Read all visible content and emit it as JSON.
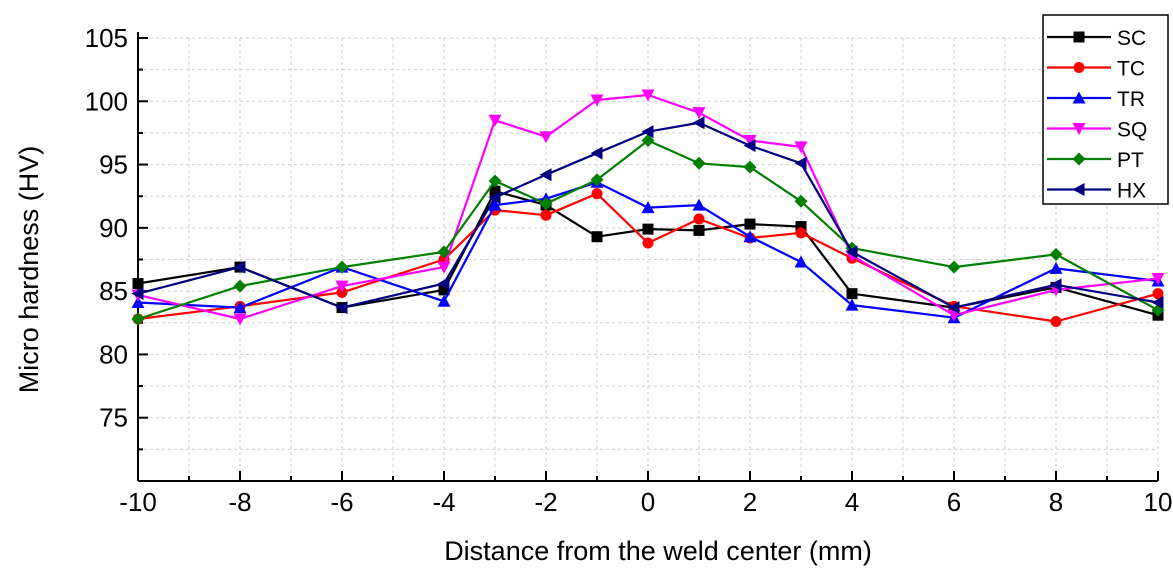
{
  "chart_data": {
    "type": "line",
    "xlabel": "Distance from the weld center (mm)",
    "ylabel": "Micro hardness (HV)",
    "xlim": [
      -10,
      10
    ],
    "ylim": [
      70,
      105
    ],
    "xticks": [
      "-10",
      "-8",
      "-6",
      "-4",
      "-2",
      "0",
      "2",
      "4",
      "6",
      "8",
      "10"
    ],
    "yticks": [
      "75",
      "80",
      "85",
      "90",
      "95",
      "100",
      "105"
    ],
    "grid": true,
    "legend_position": "top-right",
    "series": [
      {
        "name": "SC",
        "color": "#000000",
        "marker": "square",
        "x": [
          -10,
          -8,
          -6,
          -4,
          -3,
          -2,
          -1,
          0,
          1,
          2,
          3,
          4,
          6,
          8,
          10
        ],
        "y": [
          85.6,
          86.9,
          83.7,
          85.1,
          92.9,
          91.8,
          89.3,
          89.9,
          89.8,
          90.3,
          90.1,
          84.8,
          83.7,
          85.3,
          83.1
        ]
      },
      {
        "name": "TC",
        "color": "#ff0000",
        "marker": "circle",
        "x": [
          -10,
          -8,
          -6,
          -4,
          -3,
          -2,
          -1,
          0,
          1,
          2,
          3,
          4,
          6,
          8,
          10
        ],
        "y": [
          82.8,
          83.8,
          84.9,
          87.5,
          91.4,
          91.0,
          92.7,
          88.8,
          90.7,
          89.2,
          89.6,
          87.6,
          83.8,
          82.6,
          84.8
        ]
      },
      {
        "name": "TR",
        "color": "#0000ff",
        "marker": "triangle-up",
        "x": [
          -10,
          -8,
          -6,
          -4,
          -3,
          -2,
          -1,
          0,
          1,
          2,
          3,
          4,
          6,
          8,
          10
        ],
        "y": [
          84.1,
          83.7,
          86.9,
          84.2,
          91.8,
          92.3,
          93.6,
          91.6,
          91.8,
          89.3,
          87.3,
          83.9,
          82.9,
          86.8,
          85.8
        ]
      },
      {
        "name": "SQ",
        "color": "#ff00ff",
        "marker": "triangle-down",
        "x": [
          -10,
          -8,
          -6,
          -4,
          -3,
          -2,
          -1,
          0,
          1,
          2,
          3,
          4,
          6,
          8,
          10
        ],
        "y": [
          84.7,
          82.8,
          85.4,
          86.9,
          98.5,
          97.2,
          100.1,
          100.5,
          99.1,
          96.9,
          96.4,
          87.8,
          83.1,
          85.1,
          86.0
        ]
      },
      {
        "name": "PT",
        "color": "#008000",
        "marker": "diamond",
        "x": [
          -10,
          -8,
          -6,
          -4,
          -3,
          -2,
          -1,
          0,
          1,
          2,
          3,
          4,
          6,
          8,
          10
        ],
        "y": [
          82.8,
          85.4,
          86.9,
          88.1,
          93.7,
          91.9,
          93.8,
          96.9,
          95.1,
          94.8,
          92.1,
          88.4,
          86.9,
          87.9,
          83.5
        ]
      },
      {
        "name": "HX",
        "color": "#000080",
        "marker": "triangle-left",
        "x": [
          -10,
          -8,
          -6,
          -4,
          -3,
          -2,
          -1,
          0,
          1,
          2,
          3,
          4,
          6,
          8,
          10
        ],
        "y": [
          84.8,
          86.9,
          83.7,
          85.6,
          92.4,
          94.2,
          95.9,
          97.6,
          98.3,
          96.5,
          95.1,
          88.1,
          83.7,
          85.5,
          84.1
        ]
      }
    ]
  }
}
